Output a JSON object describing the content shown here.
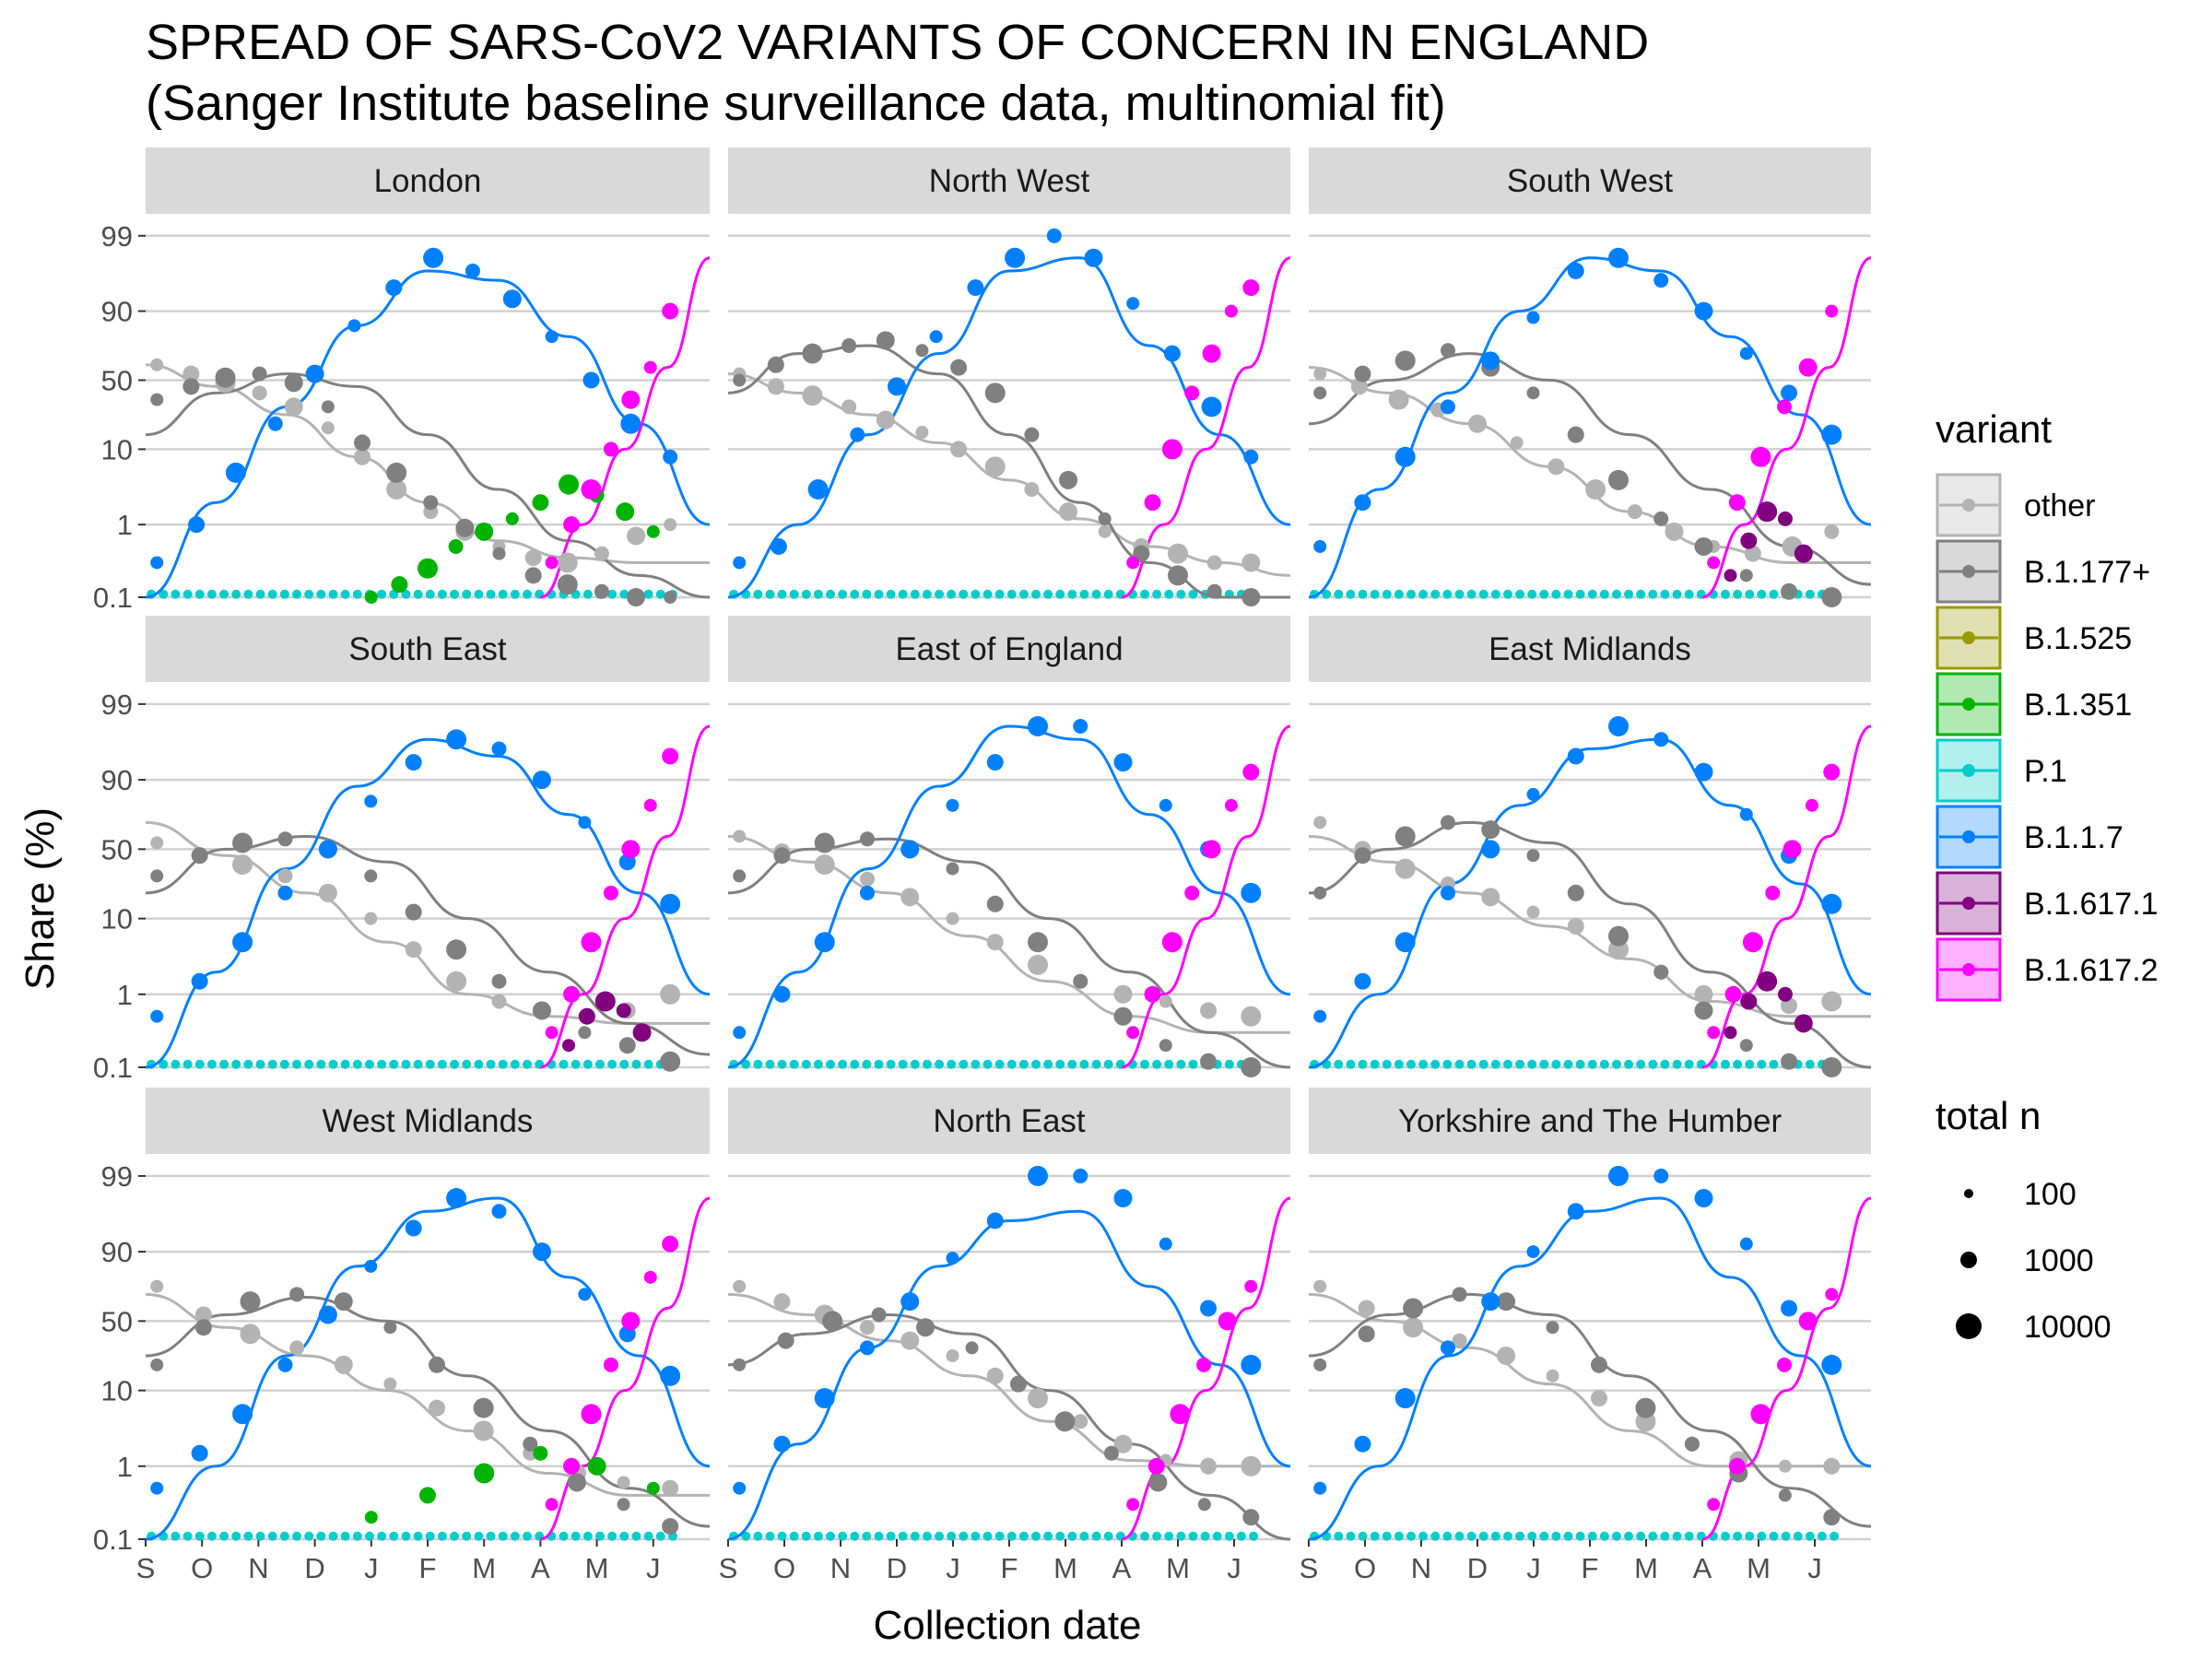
{
  "chart_data": {
    "type": "scatter",
    "title_line1": "SPREAD OF SARS-CoV2 VARIANTS OF CONCERN IN ENGLAND",
    "title_line2": "(Sanger Institute baseline surveillance data, multinomial fit)",
    "xlabel": "Collection date",
    "ylabel": "Share (%)",
    "x_ticks": [
      "S",
      "O",
      "N",
      "D",
      "J",
      "F",
      "M",
      "A",
      "M",
      "J"
    ],
    "y_ticks": [
      "0.1",
      "1",
      "10",
      "50",
      "90",
      "99"
    ],
    "y_tick_values": [
      0.1,
      1,
      10,
      50,
      90,
      99
    ],
    "y_scale": "logit",
    "x_range": [
      "2020-09-01",
      "2021-07-10"
    ],
    "grid": true,
    "legend_placement": "right",
    "legend": {
      "variant_title": "variant",
      "size_title": "total n",
      "size_labels": [
        "100",
        "1000",
        "10000"
      ]
    },
    "variants": [
      {
        "name": "other",
        "color": "#b3b3b3"
      },
      {
        "name": "B.1.177+",
        "color": "#808080"
      },
      {
        "name": "B.1.525",
        "color": "#999900"
      },
      {
        "name": "B.1.351",
        "color": "#00b300"
      },
      {
        "name": "P.1",
        "color": "#00cccc"
      },
      {
        "name": "B.1.1.7",
        "color": "#0080ff"
      },
      {
        "name": "B.1.617.1",
        "color": "#800080"
      },
      {
        "name": "B.1.617.2",
        "color": "#ff00ff"
      }
    ],
    "panels": [
      {
        "name": "London",
        "points": {
          "other": [
            62,
            55,
            48,
            40,
            30,
            18,
            8,
            3,
            1.5,
            0.8,
            0.5,
            0.35,
            0.3,
            0.4,
            0.7,
            1.0
          ],
          "B.1.177+": [
            35,
            45,
            52,
            55,
            48,
            30,
            12,
            5,
            2,
            0.9,
            0.4,
            0.2,
            0.15,
            0.12,
            0.1,
            0.1
          ],
          "B.1.1.7": [
            0.3,
            1,
            5,
            20,
            55,
            85,
            95,
            98,
            97,
            93,
            80,
            50,
            20,
            8
          ],
          "B.1.351": [
            0.1,
            0.15,
            0.25,
            0.5,
            0.8,
            1.2,
            2,
            3.5,
            2.5,
            1.5,
            0.8
          ],
          "B.1.617.2": [
            0.3,
            1,
            3,
            10,
            35,
            60,
            90
          ]
        },
        "fit": {
          "other": [
            62,
            45,
            25,
            8,
            2,
            0.6,
            0.35,
            0.3,
            0.3
          ],
          "B.1.177+": [
            15,
            40,
            55,
            45,
            15,
            3,
            0.6,
            0.2,
            0.1
          ],
          "B.1.1.7": [
            0.1,
            2,
            30,
            85,
            97,
            96,
            80,
            20,
            1
          ],
          "B.1.617.2": [
            0.1,
            1,
            10,
            60,
            98
          ]
        }
      },
      {
        "name": "North West",
        "points": {
          "other": [
            55,
            45,
            38,
            30,
            22,
            16,
            10,
            6,
            3,
            1.5,
            0.8,
            0.5,
            0.4,
            0.3,
            0.3
          ],
          "B.1.177+": [
            50,
            62,
            70,
            75,
            78,
            72,
            60,
            40,
            15,
            4,
            1.2,
            0.4,
            0.2,
            0.12,
            0.1
          ],
          "B.1.1.7": [
            0.3,
            0.5,
            3,
            15,
            45,
            80,
            95,
            98,
            99,
            98,
            92,
            70,
            30,
            8
          ],
          "B.1.617.2": [
            0.3,
            2,
            10,
            40,
            70,
            90,
            95
          ]
        },
        "fit": {
          "other": [
            55,
            40,
            25,
            12,
            4,
            1.2,
            0.5,
            0.3,
            0.2
          ],
          "B.1.177+": [
            40,
            70,
            75,
            55,
            15,
            2,
            0.3,
            0.1,
            0.1
          ],
          "B.1.1.7": [
            0.1,
            1,
            15,
            70,
            97,
            98,
            75,
            15,
            1
          ],
          "B.1.617.2": [
            0.1,
            1,
            10,
            60,
            98
          ]
        }
      },
      {
        "name": "South West",
        "points": {
          "other": [
            55,
            45,
            35,
            28,
            20,
            12,
            6,
            3,
            1.5,
            0.8,
            0.5,
            0.4,
            0.5,
            0.8
          ],
          "B.1.177+": [
            40,
            55,
            65,
            72,
            60,
            40,
            15,
            4,
            1.2,
            0.5,
            0.2,
            0.12,
            0.1
          ],
          "B.1.1.7": [
            0.5,
            2,
            8,
            30,
            65,
            88,
            97,
            98,
            96,
            90,
            70,
            40,
            15
          ],
          "B.1.617.1": [
            0.2,
            0.6,
            1.5,
            1.2,
            0.4
          ],
          "B.1.617.2": [
            0.3,
            2,
            8,
            30,
            60,
            90
          ]
        },
        "fit": {
          "other": [
            60,
            40,
            20,
            6,
            1.5,
            0.5,
            0.3,
            0.3
          ],
          "B.1.177+": [
            20,
            50,
            70,
            50,
            15,
            3,
            0.5,
            0.15
          ],
          "B.1.1.7": [
            0.1,
            3,
            40,
            90,
            98,
            97,
            80,
            25,
            1
          ],
          "B.1.617.2": [
            0.1,
            1,
            10,
            60,
            98
          ]
        }
      },
      {
        "name": "South East",
        "points": {
          "other": [
            55,
            45,
            38,
            30,
            20,
            10,
            4,
            1.5,
            0.8,
            0.6,
            0.5,
            0.6,
            1.0
          ],
          "B.1.177+": [
            30,
            45,
            55,
            58,
            50,
            30,
            12,
            4,
            1.5,
            0.6,
            0.3,
            0.2,
            0.12
          ],
          "B.1.1.7": [
            0.5,
            1.5,
            5,
            20,
            50,
            82,
            94,
            97,
            96,
            90,
            70,
            40,
            15
          ],
          "B.1.617.1": [
            0.2,
            0.5,
            0.8,
            0.6,
            0.3
          ],
          "B.1.617.2": [
            0.3,
            1,
            5,
            20,
            50,
            80,
            95
          ]
        },
        "fit": {
          "other": [
            70,
            45,
            20,
            5,
            1,
            0.5,
            0.4,
            0.4
          ],
          "B.1.177+": [
            20,
            50,
            60,
            40,
            10,
            2,
            0.4,
            0.15
          ],
          "B.1.1.7": [
            0.1,
            2,
            35,
            88,
            97,
            95,
            75,
            20,
            1
          ],
          "B.1.617.2": [
            0.1,
            1,
            10,
            60,
            98
          ]
        }
      },
      {
        "name": "East of England",
        "points": {
          "other": [
            60,
            48,
            38,
            28,
            18,
            10,
            5,
            2.5,
            1.5,
            1,
            0.8,
            0.6,
            0.5
          ],
          "B.1.177+": [
            30,
            45,
            55,
            58,
            50,
            35,
            15,
            5,
            1.5,
            0.5,
            0.2,
            0.12,
            0.1
          ],
          "B.1.1.7": [
            0.3,
            1,
            5,
            20,
            50,
            80,
            94,
            98,
            98,
            94,
            80,
            50,
            20
          ],
          "B.1.617.2": [
            0.3,
            1,
            5,
            20,
            50,
            80,
            92
          ]
        },
        "fit": {
          "other": [
            60,
            40,
            20,
            6,
            1.5,
            0.5,
            0.3,
            0.3
          ],
          "B.1.177+": [
            20,
            50,
            58,
            40,
            10,
            2,
            0.3,
            0.1
          ],
          "B.1.1.7": [
            0.1,
            2,
            35,
            88,
            98,
            97,
            75,
            20,
            1
          ],
          "B.1.617.2": [
            0.1,
            1,
            10,
            60,
            98
          ]
        }
      },
      {
        "name": "East Midlands",
        "points": {
          "other": [
            70,
            50,
            35,
            25,
            18,
            12,
            8,
            4,
            2,
            1,
            0.8,
            0.7,
            0.8
          ],
          "B.1.177+": [
            20,
            45,
            60,
            70,
            65,
            45,
            20,
            6,
            2,
            0.6,
            0.2,
            0.12,
            0.1
          ],
          "B.1.1.7": [
            0.5,
            1.5,
            5,
            20,
            50,
            85,
            95,
            98,
            97,
            92,
            75,
            45,
            15
          ],
          "B.1.617.1": [
            0.3,
            0.8,
            1.5,
            1.0,
            0.4
          ],
          "B.1.617.2": [
            0.3,
            1,
            5,
            20,
            50,
            80,
            92
          ]
        },
        "fit": {
          "other": [
            60,
            40,
            20,
            8,
            3,
            0.8,
            0.5,
            0.5
          ],
          "B.1.177+": [
            20,
            50,
            70,
            55,
            15,
            2,
            0.4,
            0.1
          ],
          "B.1.1.7": [
            0.1,
            1,
            25,
            80,
            96,
            97,
            80,
            25,
            1
          ],
          "B.1.617.2": [
            0.1,
            1,
            10,
            60,
            98
          ]
        }
      },
      {
        "name": "West Midlands",
        "points": {
          "other": [
            75,
            55,
            40,
            30,
            20,
            12,
            6,
            3,
            1.5,
            0.8,
            0.6,
            0.5
          ],
          "B.1.177+": [
            20,
            45,
            65,
            70,
            65,
            45,
            20,
            6,
            2,
            0.6,
            0.3,
            0.15
          ],
          "B.1.1.7": [
            0.5,
            1.5,
            5,
            20,
            55,
            85,
            95,
            98,
            97,
            90,
            70,
            40,
            15
          ],
          "B.1.351": [
            0.2,
            0.4,
            0.8,
            1.5,
            1.0,
            0.5
          ],
          "B.1.617.2": [
            0.3,
            1,
            5,
            20,
            50,
            80,
            92
          ]
        },
        "fit": {
          "other": [
            70,
            45,
            25,
            10,
            3,
            0.8,
            0.4,
            0.4
          ],
          "B.1.177+": [
            25,
            55,
            68,
            50,
            15,
            3,
            0.5,
            0.15
          ],
          "B.1.1.7": [
            0.1,
            1,
            25,
            85,
            97,
            98,
            80,
            25,
            1
          ],
          "B.1.617.2": [
            0.1,
            1,
            10,
            60,
            98
          ]
        }
      },
      {
        "name": "North East",
        "points": {
          "other": [
            75,
            65,
            55,
            45,
            35,
            25,
            15,
            8,
            4,
            2,
            1.2,
            1,
            1
          ],
          "B.1.177+": [
            20,
            35,
            50,
            55,
            45,
            30,
            12,
            4,
            1.5,
            0.6,
            0.3,
            0.2
          ],
          "B.1.1.7": [
            0.5,
            2,
            8,
            30,
            65,
            88,
            96,
            99,
            99,
            98,
            92,
            60,
            20
          ],
          "B.1.617.2": [
            0.3,
            1,
            5,
            20,
            50,
            75
          ]
        },
        "fit": {
          "other": [
            70,
            55,
            35,
            15,
            4,
            1.2,
            1,
            1
          ],
          "B.1.177+": [
            20,
            40,
            55,
            40,
            10,
            2,
            0.4,
            0.1
          ],
          "B.1.1.7": [
            0.1,
            2,
            30,
            85,
            96,
            97,
            75,
            20,
            1
          ],
          "B.1.617.2": [
            0.1,
            1,
            10,
            60,
            98
          ]
        }
      },
      {
        "name": "Yorkshire and The Humber",
        "points": {
          "other": [
            75,
            60,
            45,
            35,
            25,
            15,
            8,
            4,
            2,
            1.2,
            1,
            1
          ],
          "B.1.177+": [
            20,
            40,
            60,
            70,
            65,
            45,
            20,
            6,
            2,
            0.8,
            0.4,
            0.2
          ],
          "B.1.1.7": [
            0.5,
            2,
            8,
            30,
            65,
            90,
            97,
            99,
            99,
            98,
            92,
            60,
            20
          ],
          "B.1.617.2": [
            0.3,
            1,
            5,
            20,
            50,
            70
          ]
        },
        "fit": {
          "other": [
            70,
            50,
            30,
            12,
            3,
            1,
            1,
            1
          ],
          "B.1.177+": [
            25,
            55,
            70,
            55,
            15,
            3,
            0.5,
            0.15
          ],
          "B.1.1.7": [
            0.1,
            1,
            25,
            85,
            97,
            98,
            80,
            25,
            1
          ],
          "B.1.617.2": [
            0.1,
            1,
            10,
            60,
            98
          ]
        }
      }
    ]
  }
}
